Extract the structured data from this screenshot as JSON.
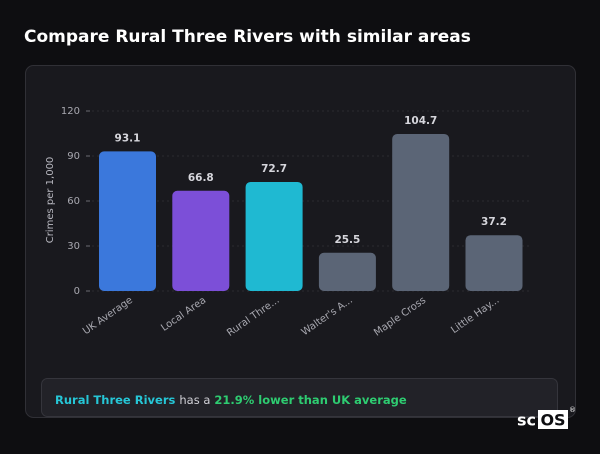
{
  "header": {
    "title": "Compare Rural Three Rivers with similar areas"
  },
  "chart_data": {
    "type": "bar",
    "y_label": "Crimes per 1,000",
    "categories": [
      "UK Average",
      "Local Area",
      "Rural Thre...",
      "Walter's A...",
      "Maple Cross",
      "Little Hay..."
    ],
    "values": [
      93.1,
      66.8,
      72.7,
      25.5,
      104.7,
      37.2
    ],
    "colors": [
      "#3b78dc",
      "#7c4fd8",
      "#1fb9d2",
      "#5b6576",
      "#5b6576",
      "#5b6576"
    ],
    "ylim": [
      0,
      120
    ],
    "yticks": [
      0,
      30,
      60,
      90,
      120
    ],
    "grid": true
  },
  "summary": {
    "area": "Rural Three Rivers",
    "middle": "has a",
    "comparison": "21.9% lower than UK average"
  },
  "logo": {
    "prefix": "sc",
    "boxed": "OS",
    "mark": "®"
  }
}
